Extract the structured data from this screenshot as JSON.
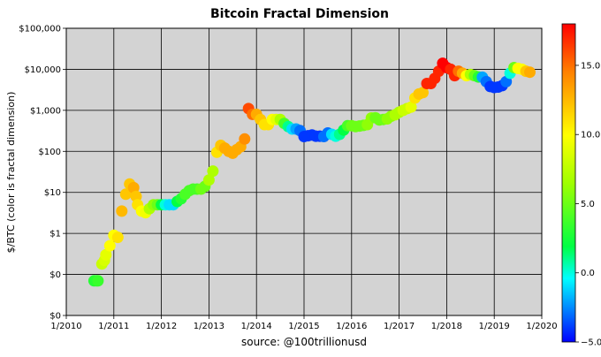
{
  "chart_data": {
    "type": "scatter",
    "title": "Bitcoin Fractal Dimension",
    "xlabel": "source: @100trillionusd",
    "ylabel": "$/BTC (color is fractal dimension)",
    "x_ticks": [
      "1/2010",
      "1/2011",
      "1/2012",
      "1/2013",
      "1/2014",
      "1/2015",
      "1/2016",
      "1/2017",
      "1/2018",
      "1/2019",
      "1/2020"
    ],
    "xlim": [
      "1/2010",
      "1/2020"
    ],
    "y_scale": "log",
    "y_ticks": [
      {
        "value": 0.01,
        "label": "$0"
      },
      {
        "value": 0.1,
        "label": "$0"
      },
      {
        "value": 1,
        "label": "$1"
      },
      {
        "value": 10,
        "label": "$10"
      },
      {
        "value": 100,
        "label": "$100"
      },
      {
        "value": 1000,
        "label": "$1,000"
      },
      {
        "value": 10000,
        "label": "$10,000"
      },
      {
        "value": 100000,
        "label": "$100,000"
      }
    ],
    "ylim": [
      0.01,
      100000
    ],
    "grid": true,
    "colorbar": {
      "min": -5.0,
      "max": 18.0,
      "ticks": [
        {
          "value": -5,
          "label": "−5.0"
        },
        {
          "value": 0,
          "label": "0.0"
        },
        {
          "value": 5,
          "label": "5.0"
        },
        {
          "value": 10,
          "label": "10.0"
        },
        {
          "value": 15,
          "label": "15.0"
        }
      ]
    },
    "points": [
      {
        "x": "2010-08",
        "y": 0.07,
        "c": 3
      },
      {
        "x": "2010-08-20",
        "y": 0.07,
        "c": 3
      },
      {
        "x": "2010-09",
        "y": 0.07,
        "c": 3.5
      },
      {
        "x": "2010-10",
        "y": 0.18,
        "c": 8
      },
      {
        "x": "2010-10-20",
        "y": 0.22,
        "c": 8.5
      },
      {
        "x": "2010-11",
        "y": 0.3,
        "c": 9
      },
      {
        "x": "2010-12",
        "y": 0.5,
        "c": 10
      },
      {
        "x": "2011-01",
        "y": 0.9,
        "c": 10
      },
      {
        "x": "2011-02",
        "y": 0.8,
        "c": 11
      },
      {
        "x": "2011-03",
        "y": 3.5,
        "c": 12.5
      },
      {
        "x": "2011-04",
        "y": 9,
        "c": 12
      },
      {
        "x": "2011-05",
        "y": 16,
        "c": 12
      },
      {
        "x": "2011-06",
        "y": 13,
        "c": 13
      },
      {
        "x": "2011-06-20",
        "y": 8,
        "c": 12
      },
      {
        "x": "2011-07",
        "y": 5,
        "c": 11
      },
      {
        "x": "2011-08",
        "y": 3.5,
        "c": 10
      },
      {
        "x": "2011-09",
        "y": 3.2,
        "c": 9.5
      },
      {
        "x": "2011-10",
        "y": 4,
        "c": 7
      },
      {
        "x": "2011-11",
        "y": 5,
        "c": 6
      },
      {
        "x": "2011-12",
        "y": 5,
        "c": 5
      },
      {
        "x": "2012-01",
        "y": 5,
        "c": 2
      },
      {
        "x": "2012-02",
        "y": 5,
        "c": 0
      },
      {
        "x": "2012-03",
        "y": 5,
        "c": -1
      },
      {
        "x": "2012-04",
        "y": 5,
        "c": -1
      },
      {
        "x": "2012-05",
        "y": 6,
        "c": 2
      },
      {
        "x": "2012-06",
        "y": 7,
        "c": 3
      },
      {
        "x": "2012-07",
        "y": 9,
        "c": 4
      },
      {
        "x": "2012-08",
        "y": 11,
        "c": 4
      },
      {
        "x": "2012-09",
        "y": 12,
        "c": 4
      },
      {
        "x": "2012-10",
        "y": 12,
        "c": 4
      },
      {
        "x": "2012-11",
        "y": 12,
        "c": 5
      },
      {
        "x": "2012-12",
        "y": 14,
        "c": 5
      },
      {
        "x": "2013-01",
        "y": 20,
        "c": 7
      },
      {
        "x": "2013-02",
        "y": 33,
        "c": 7
      },
      {
        "x": "2013-03",
        "y": 95,
        "c": 11
      },
      {
        "x": "2013-04",
        "y": 140,
        "c": 12
      },
      {
        "x": "2013-05",
        "y": 120,
        "c": 13
      },
      {
        "x": "2013-06",
        "y": 100,
        "c": 13
      },
      {
        "x": "2013-07",
        "y": 90,
        "c": 13
      },
      {
        "x": "2013-08",
        "y": 110,
        "c": 13
      },
      {
        "x": "2013-09",
        "y": 130,
        "c": 13
      },
      {
        "x": "2013-10",
        "y": 200,
        "c": 14
      },
      {
        "x": "2013-11",
        "y": 1100,
        "c": 16
      },
      {
        "x": "2013-12",
        "y": 800,
        "c": 15
      },
      {
        "x": "2014-01",
        "y": 800,
        "c": 13
      },
      {
        "x": "2014-02",
        "y": 600,
        "c": 12
      },
      {
        "x": "2014-03",
        "y": 450,
        "c": 11
      },
      {
        "x": "2014-04",
        "y": 450,
        "c": 11
      },
      {
        "x": "2014-05",
        "y": 600,
        "c": 10
      },
      {
        "x": "2014-06",
        "y": 600,
        "c": 9
      },
      {
        "x": "2014-07",
        "y": 600,
        "c": 7
      },
      {
        "x": "2014-08",
        "y": 480,
        "c": 4
      },
      {
        "x": "2014-09",
        "y": 400,
        "c": 1
      },
      {
        "x": "2014-10",
        "y": 350,
        "c": -1
      },
      {
        "x": "2014-11",
        "y": 350,
        "c": -2
      },
      {
        "x": "2014-12",
        "y": 320,
        "c": -3
      },
      {
        "x": "2015-01",
        "y": 230,
        "c": -4
      },
      {
        "x": "2015-02",
        "y": 240,
        "c": -4
      },
      {
        "x": "2015-03",
        "y": 250,
        "c": -4
      },
      {
        "x": "2015-04",
        "y": 235,
        "c": -4
      },
      {
        "x": "2015-05",
        "y": 235,
        "c": -4
      },
      {
        "x": "2015-06",
        "y": 230,
        "c": -3
      },
      {
        "x": "2015-07",
        "y": 280,
        "c": -3
      },
      {
        "x": "2015-08",
        "y": 260,
        "c": -1
      },
      {
        "x": "2015-09",
        "y": 235,
        "c": 0
      },
      {
        "x": "2015-10",
        "y": 260,
        "c": 1
      },
      {
        "x": "2015-11",
        "y": 330,
        "c": 2
      },
      {
        "x": "2015-12",
        "y": 420,
        "c": 4
      },
      {
        "x": "2016-01",
        "y": 420,
        "c": 5
      },
      {
        "x": "2016-02",
        "y": 400,
        "c": 5
      },
      {
        "x": "2016-03",
        "y": 415,
        "c": 5
      },
      {
        "x": "2016-04",
        "y": 430,
        "c": 5
      },
      {
        "x": "2016-05",
        "y": 450,
        "c": 6
      },
      {
        "x": "2016-06",
        "y": 650,
        "c": 6
      },
      {
        "x": "2016-07",
        "y": 660,
        "c": 5
      },
      {
        "x": "2016-08",
        "y": 580,
        "c": 5
      },
      {
        "x": "2016-09",
        "y": 600,
        "c": 5
      },
      {
        "x": "2016-10",
        "y": 620,
        "c": 6
      },
      {
        "x": "2016-11",
        "y": 720,
        "c": 6
      },
      {
        "x": "2016-12",
        "y": 780,
        "c": 7
      },
      {
        "x": "2017-01",
        "y": 900,
        "c": 7
      },
      {
        "x": "2017-02",
        "y": 1000,
        "c": 8
      },
      {
        "x": "2017-03",
        "y": 1100,
        "c": 8
      },
      {
        "x": "2017-04",
        "y": 1200,
        "c": 9
      },
      {
        "x": "2017-05",
        "y": 2000,
        "c": 11
      },
      {
        "x": "2017-06",
        "y": 2500,
        "c": 12
      },
      {
        "x": "2017-07",
        "y": 2700,
        "c": 12
      },
      {
        "x": "2017-08",
        "y": 4500,
        "c": 17
      },
      {
        "x": "2017-09",
        "y": 4500,
        "c": 17
      },
      {
        "x": "2017-10",
        "y": 6000,
        "c": 17
      },
      {
        "x": "2017-11",
        "y": 9000,
        "c": 17
      },
      {
        "x": "2017-12",
        "y": 14000,
        "c": 18
      },
      {
        "x": "2018-01",
        "y": 11000,
        "c": 18
      },
      {
        "x": "2018-02",
        "y": 10000,
        "c": 17
      },
      {
        "x": "2018-03",
        "y": 7000,
        "c": 17
      },
      {
        "x": "2018-04",
        "y": 9000,
        "c": 15
      },
      {
        "x": "2018-05",
        "y": 8000,
        "c": 13
      },
      {
        "x": "2018-06",
        "y": 7000,
        "c": 10
      },
      {
        "x": "2018-07",
        "y": 7500,
        "c": 7
      },
      {
        "x": "2018-08",
        "y": 7000,
        "c": 5
      },
      {
        "x": "2018-09",
        "y": 6500,
        "c": 3
      },
      {
        "x": "2018-10",
        "y": 6400,
        "c": -2
      },
      {
        "x": "2018-11",
        "y": 5000,
        "c": -3
      },
      {
        "x": "2018-12",
        "y": 3800,
        "c": -4
      },
      {
        "x": "2019-01",
        "y": 3600,
        "c": -4
      },
      {
        "x": "2019-02",
        "y": 3700,
        "c": -4
      },
      {
        "x": "2019-03",
        "y": 4000,
        "c": -4
      },
      {
        "x": "2019-04",
        "y": 5000,
        "c": -3
      },
      {
        "x": "2019-05",
        "y": 8000,
        "c": 0
      },
      {
        "x": "2019-06",
        "y": 11000,
        "c": 5
      },
      {
        "x": "2019-07",
        "y": 10500,
        "c": 10
      },
      {
        "x": "2019-08",
        "y": 10000,
        "c": 10
      },
      {
        "x": "2019-09",
        "y": 9000,
        "c": 12
      },
      {
        "x": "2019-10",
        "y": 8500,
        "c": 13
      }
    ]
  }
}
